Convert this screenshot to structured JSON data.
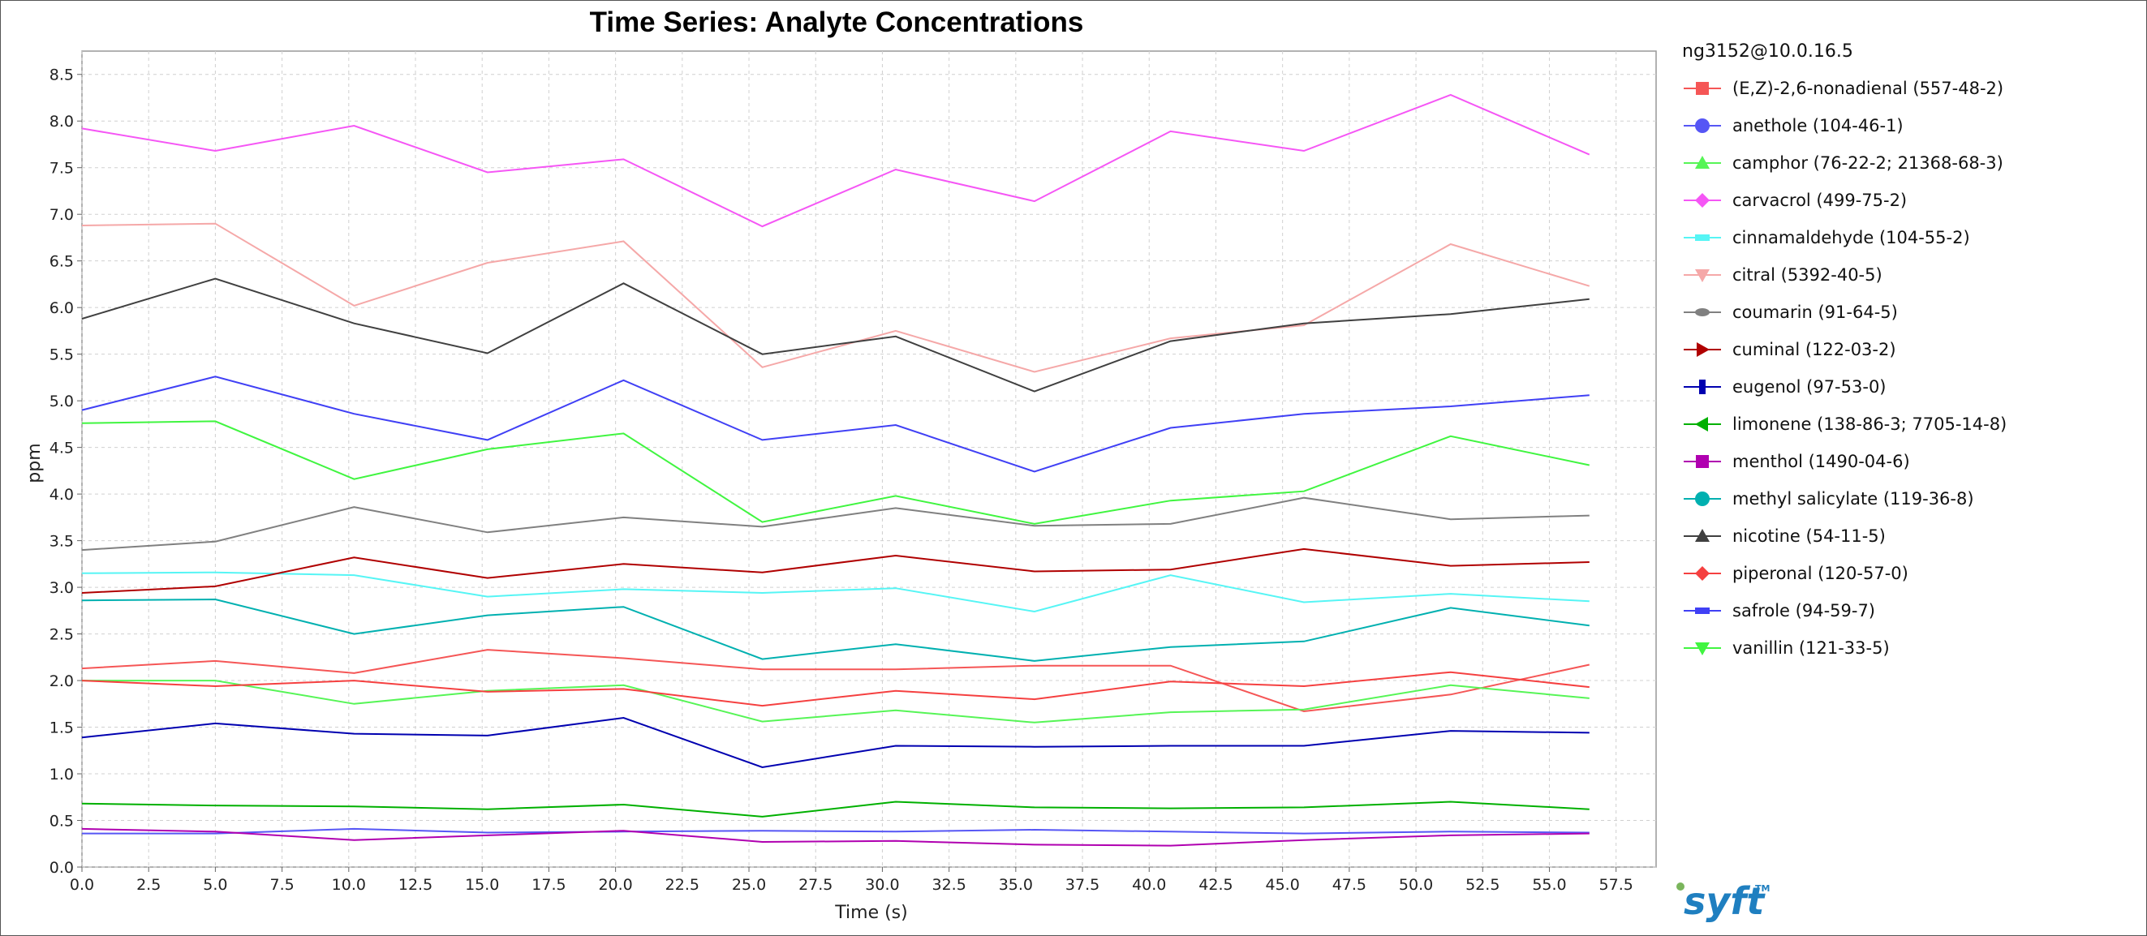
{
  "chart_data": {
    "type": "line",
    "title": "Time Series: Analyte Concentrations",
    "xlabel": "Time (s)",
    "ylabel": "ppm",
    "xlim": [
      0,
      59
    ],
    "ylim": [
      0,
      8.75
    ],
    "x_ticks": [
      "0.0",
      "2.5",
      "5.0",
      "7.5",
      "10.0",
      "12.5",
      "15.0",
      "17.5",
      "20.0",
      "22.5",
      "25.0",
      "27.5",
      "30.0",
      "32.5",
      "35.0",
      "37.5",
      "40.0",
      "42.5",
      "45.0",
      "47.5",
      "50.0",
      "52.5",
      "55.0",
      "57.5"
    ],
    "y_ticks": [
      "0.0",
      "0.5",
      "1.0",
      "1.5",
      "2.0",
      "2.5",
      "3.0",
      "3.5",
      "4.0",
      "4.5",
      "5.0",
      "5.5",
      "6.0",
      "6.5",
      "7.0",
      "7.5",
      "8.0",
      "8.5"
    ],
    "grid": true,
    "legend_position": "right",
    "x": [
      0,
      5.0,
      10.2,
      15.2,
      20.3,
      25.5,
      30.5,
      35.7,
      40.8,
      45.8,
      51.3,
      56.5
    ],
    "series": [
      {
        "name": "(E,Z)-2,6-nonadienal (557-48-2)",
        "marker": "square",
        "color": "#f55656",
        "values": [
          2.13,
          2.21,
          2.08,
          2.33,
          2.24,
          2.12,
          2.12,
          2.16,
          2.16,
          1.67,
          1.85,
          2.17
        ]
      },
      {
        "name": "anethole (104-46-1)",
        "marker": "circle",
        "color": "#5656f5",
        "values": [
          0.36,
          0.36,
          0.41,
          0.37,
          0.38,
          0.39,
          0.38,
          0.4,
          0.38,
          0.36,
          0.38,
          0.37
        ]
      },
      {
        "name": "camphor (76-22-2; 21368-68-3)",
        "marker": "triangle-up",
        "color": "#56f556",
        "values": [
          2.0,
          2.0,
          1.75,
          1.89,
          1.95,
          1.56,
          1.68,
          1.55,
          1.66,
          1.69,
          1.95,
          1.81
        ]
      },
      {
        "name": "carvacrol (499-75-2)",
        "marker": "diamond",
        "color": "#f556f5",
        "values": [
          7.92,
          7.68,
          7.95,
          7.45,
          7.59,
          6.87,
          7.48,
          7.14,
          7.89,
          7.68,
          8.28,
          7.64
        ]
      },
      {
        "name": "cinnamaldehyde (104-55-2)",
        "marker": "rect-h",
        "color": "#56f5f5",
        "values": [
          3.15,
          3.16,
          3.13,
          2.9,
          2.98,
          2.94,
          2.99,
          2.74,
          3.13,
          2.84,
          2.93,
          2.85
        ]
      },
      {
        "name": "citral (5392-40-5)",
        "marker": "triangle-down",
        "color": "#f5a8a8",
        "values": [
          6.88,
          6.9,
          6.02,
          6.48,
          6.71,
          5.36,
          5.75,
          5.31,
          5.67,
          5.81,
          6.68,
          6.23
        ]
      },
      {
        "name": "coumarin (91-64-5)",
        "marker": "ellipse",
        "color": "#808080",
        "values": [
          3.4,
          3.49,
          3.86,
          3.59,
          3.75,
          3.65,
          3.85,
          3.66,
          3.68,
          3.96,
          3.73,
          3.77
        ]
      },
      {
        "name": "cuminal (122-03-2)",
        "marker": "triangle-right",
        "color": "#b00000",
        "values": [
          2.94,
          3.01,
          3.32,
          3.1,
          3.25,
          3.16,
          3.34,
          3.17,
          3.19,
          3.41,
          3.23,
          3.27
        ]
      },
      {
        "name": "eugenol (97-53-0)",
        "marker": "rect-v",
        "color": "#0000b0",
        "values": [
          1.39,
          1.54,
          1.43,
          1.41,
          1.6,
          1.07,
          1.3,
          1.29,
          1.3,
          1.3,
          1.46,
          1.44
        ]
      },
      {
        "name": "limonene (138-86-3; 7705-14-8)",
        "marker": "triangle-left",
        "color": "#00b000",
        "values": [
          0.68,
          0.66,
          0.65,
          0.62,
          0.67,
          0.54,
          0.7,
          0.64,
          0.63,
          0.64,
          0.7,
          0.62
        ]
      },
      {
        "name": "menthol (1490-04-6)",
        "marker": "square",
        "color": "#b000b0",
        "values": [
          0.41,
          0.38,
          0.29,
          0.34,
          0.39,
          0.27,
          0.28,
          0.24,
          0.23,
          0.29,
          0.34,
          0.36
        ]
      },
      {
        "name": "methyl salicylate (119-36-8)",
        "marker": "circle",
        "color": "#00b0b0",
        "values": [
          2.86,
          2.87,
          2.5,
          2.7,
          2.79,
          2.23,
          2.39,
          2.21,
          2.36,
          2.42,
          2.78,
          2.59
        ]
      },
      {
        "name": "nicotine (54-11-5)",
        "marker": "triangle-up",
        "color": "#404040",
        "values": [
          5.88,
          6.31,
          5.83,
          5.51,
          6.26,
          5.5,
          5.69,
          5.1,
          5.64,
          5.83,
          5.93,
          6.09
        ]
      },
      {
        "name": "piperonal (120-57-0)",
        "marker": "diamond",
        "color": "#f54040",
        "values": [
          2.0,
          1.94,
          2.0,
          1.88,
          1.91,
          1.73,
          1.89,
          1.8,
          1.99,
          1.94,
          2.09,
          1.93
        ]
      },
      {
        "name": "safrole (94-59-7)",
        "marker": "rect-h",
        "color": "#4040f5",
        "values": [
          4.9,
          5.26,
          4.86,
          4.58,
          5.22,
          4.58,
          4.74,
          4.24,
          4.71,
          4.86,
          4.94,
          5.06
        ]
      },
      {
        "name": "vanillin (121-33-5)",
        "marker": "triangle-down",
        "color": "#40f540",
        "values": [
          4.76,
          4.78,
          4.16,
          4.48,
          4.65,
          3.7,
          3.98,
          3.68,
          3.93,
          4.03,
          4.62,
          4.31
        ]
      }
    ]
  },
  "legend_title": "ng3152@10.0.16.5",
  "logo_text": "syft",
  "logo_tm": "TM",
  "colors": {
    "plot_border": "#999999",
    "grid": "#d0d0d0",
    "logo": "#1f7fc0",
    "logo_dot": "#7ab55c"
  }
}
